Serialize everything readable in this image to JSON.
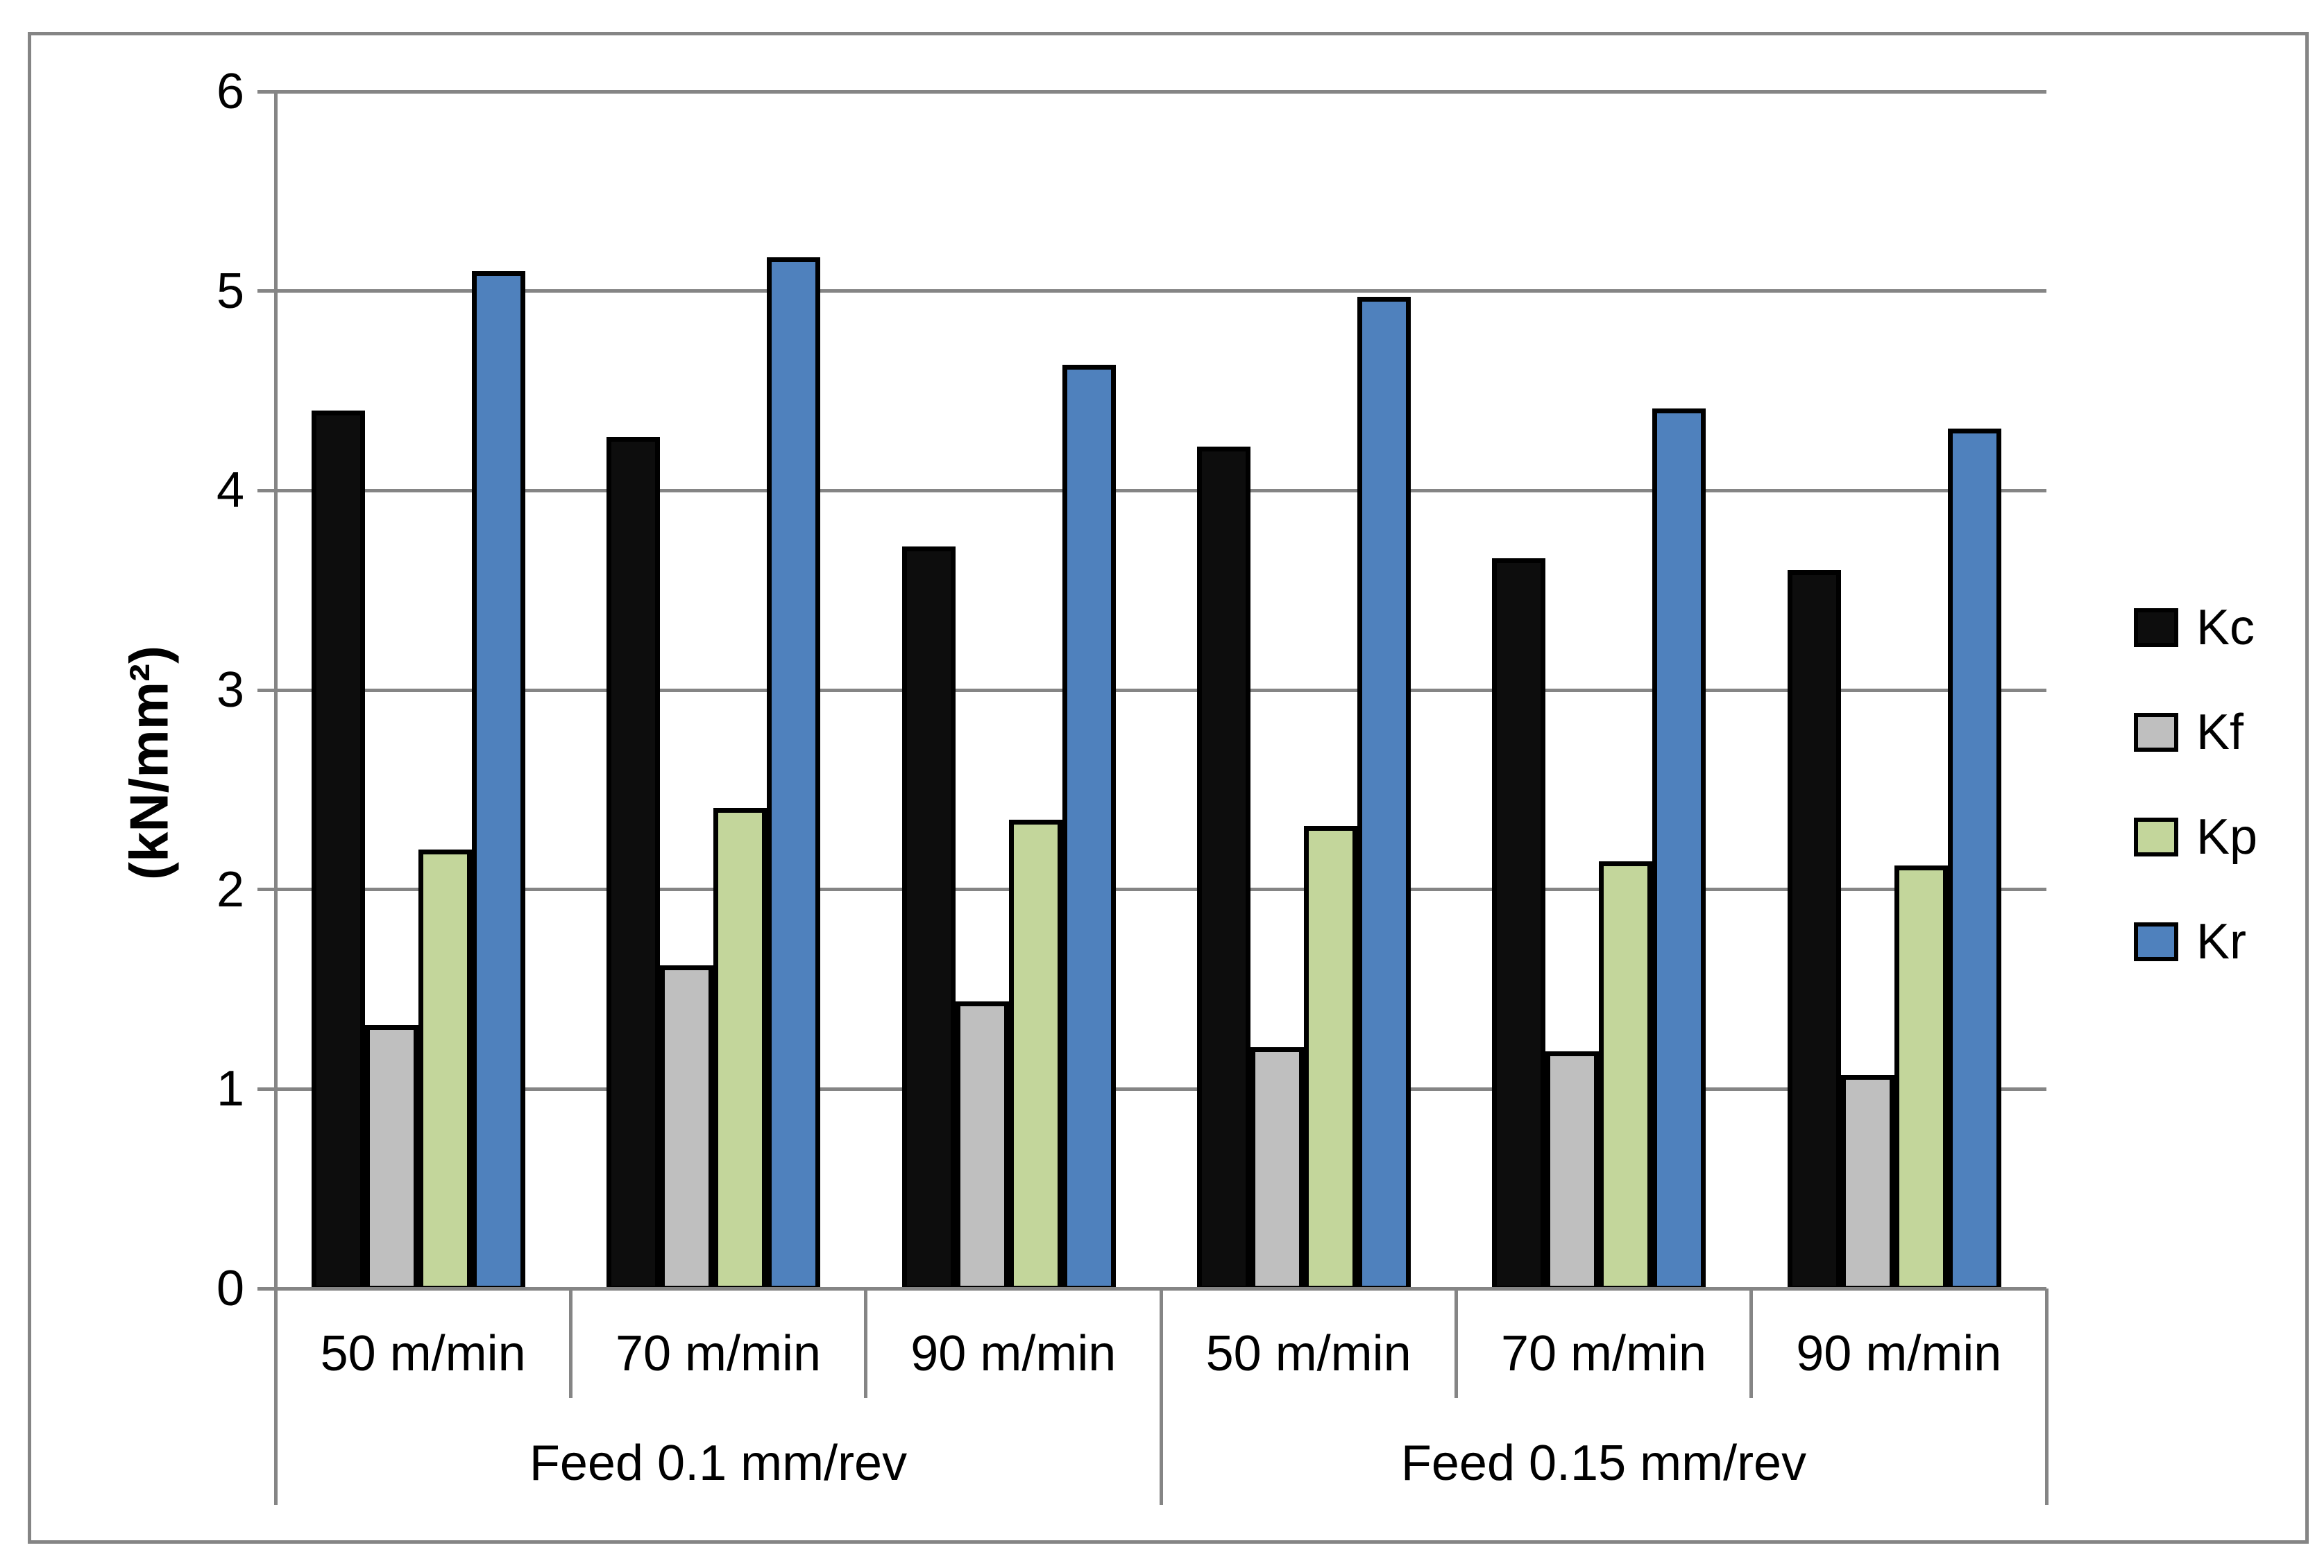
{
  "chart_data": {
    "type": "bar",
    "title": "",
    "ylabel": "(kN/mm²)",
    "xlabel": "",
    "ylim": [
      0,
      6
    ],
    "ytick_step": 1,
    "y_tick_labels": [
      "0",
      "1",
      "2",
      "3",
      "4",
      "5",
      "6"
    ],
    "grid": "horizontal",
    "legend_position": "right",
    "categories": [
      "50 m/min",
      "70 m/min",
      "90 m/min",
      "50 m/min",
      "70 m/min",
      "90 m/min"
    ],
    "super_groups": [
      {
        "label": "Feed 0.1 mm/rev",
        "start": 0,
        "span": 3
      },
      {
        "label": "Feed 0.15 mm/rev",
        "start": 3,
        "span": 3
      }
    ],
    "series": [
      {
        "name": "Kc",
        "color": "#0d0d0d",
        "values": [
          4.4,
          4.27,
          3.72,
          4.22,
          3.66,
          3.6
        ]
      },
      {
        "name": "Kf",
        "color": "#bfbfbf",
        "values": [
          1.32,
          1.62,
          1.44,
          1.21,
          1.19,
          1.07
        ]
      },
      {
        "name": "Kp",
        "color": "#c3d69b",
        "values": [
          2.2,
          2.41,
          2.35,
          2.32,
          2.14,
          2.12
        ]
      },
      {
        "name": "Kr",
        "color": "#4f81bd",
        "values": [
          5.1,
          5.17,
          4.63,
          4.97,
          4.41,
          4.31
        ]
      }
    ],
    "colors": {
      "axis_and_grid": "#858585",
      "figure_border": "#858585",
      "bar_outline": "#000000",
      "text": "#000000",
      "background": "#ffffff"
    }
  }
}
